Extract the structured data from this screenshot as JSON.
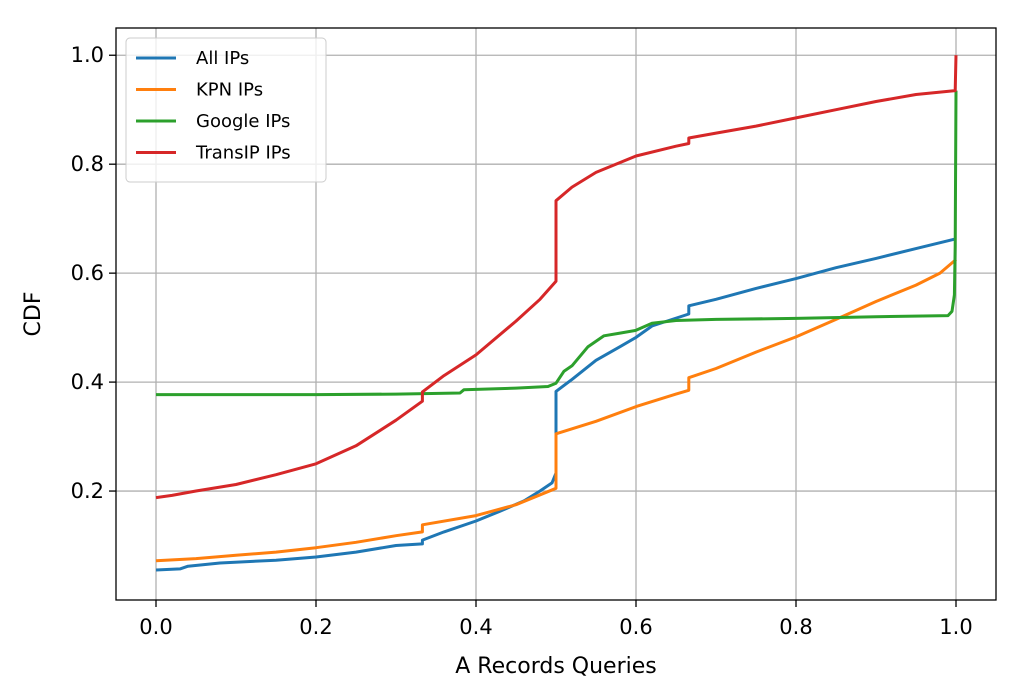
{
  "chart_data": {
    "type": "line",
    "xlabel": "A Records Queries",
    "ylabel": "CDF",
    "xlim": [
      -0.05,
      1.05
    ],
    "ylim": [
      0.0,
      1.05
    ],
    "xticks": [
      0.0,
      0.2,
      0.4,
      0.6,
      0.8,
      1.0
    ],
    "yticks": [
      0.2,
      0.4,
      0.6,
      0.8,
      1.0
    ],
    "xtick_labels": [
      "0.0",
      "0.2",
      "0.4",
      "0.6",
      "0.8",
      "1.0"
    ],
    "ytick_labels": [
      "0.2",
      "0.4",
      "0.6",
      "0.8",
      "1.0"
    ],
    "grid": true,
    "legend_position": "top-left",
    "series": [
      {
        "name": "All IPs",
        "color": "#1f77b4",
        "x": [
          0.0,
          0.03,
          0.04,
          0.08,
          0.15,
          0.2,
          0.25,
          0.3,
          0.333,
          0.333,
          0.36,
          0.4,
          0.43,
          0.46,
          0.48,
          0.495,
          0.5,
          0.5,
          0.52,
          0.55,
          0.58,
          0.6,
          0.62,
          0.666,
          0.666,
          0.7,
          0.75,
          0.8,
          0.85,
          0.9,
          0.95,
          1.0
        ],
        "y": [
          0.055,
          0.057,
          0.062,
          0.068,
          0.073,
          0.079,
          0.088,
          0.1,
          0.103,
          0.11,
          0.125,
          0.145,
          0.163,
          0.182,
          0.2,
          0.215,
          0.233,
          0.383,
          0.405,
          0.44,
          0.465,
          0.482,
          0.503,
          0.525,
          0.54,
          0.552,
          0.572,
          0.59,
          0.61,
          0.627,
          0.645,
          0.663
        ]
      },
      {
        "name": "KPN IPs",
        "color": "#ff7f0e",
        "x": [
          0.0,
          0.05,
          0.1,
          0.15,
          0.2,
          0.25,
          0.3,
          0.333,
          0.333,
          0.4,
          0.45,
          0.5,
          0.5,
          0.55,
          0.6,
          0.65,
          0.666,
          0.666,
          0.7,
          0.75,
          0.8,
          0.85,
          0.9,
          0.95,
          0.98,
          1.0
        ],
        "y": [
          0.072,
          0.076,
          0.082,
          0.088,
          0.096,
          0.106,
          0.118,
          0.125,
          0.138,
          0.155,
          0.175,
          0.205,
          0.305,
          0.328,
          0.355,
          0.378,
          0.385,
          0.408,
          0.425,
          0.455,
          0.483,
          0.515,
          0.548,
          0.578,
          0.6,
          0.625
        ]
      },
      {
        "name": "Google IPs",
        "color": "#2ca02c",
        "x": [
          0.0,
          0.2,
          0.3,
          0.38,
          0.385,
          0.45,
          0.49,
          0.5,
          0.51,
          0.52,
          0.54,
          0.56,
          0.58,
          0.6,
          0.62,
          0.65,
          0.7,
          0.8,
          0.9,
          0.99,
          0.995,
          0.998,
          0.999,
          1.0
        ],
        "y": [
          0.377,
          0.377,
          0.378,
          0.38,
          0.386,
          0.389,
          0.392,
          0.398,
          0.42,
          0.43,
          0.465,
          0.485,
          0.49,
          0.495,
          0.508,
          0.513,
          0.515,
          0.517,
          0.52,
          0.522,
          0.53,
          0.56,
          0.65,
          0.935
        ]
      },
      {
        "name": "TransIP IPs",
        "color": "#d62728",
        "x": [
          0.0,
          0.02,
          0.05,
          0.1,
          0.15,
          0.2,
          0.25,
          0.3,
          0.333,
          0.333,
          0.36,
          0.4,
          0.45,
          0.48,
          0.5,
          0.5,
          0.52,
          0.55,
          0.6,
          0.65,
          0.666,
          0.666,
          0.7,
          0.75,
          0.8,
          0.85,
          0.9,
          0.95,
          0.999,
          1.0
        ],
        "y": [
          0.188,
          0.192,
          0.2,
          0.212,
          0.23,
          0.25,
          0.283,
          0.33,
          0.365,
          0.382,
          0.412,
          0.45,
          0.512,
          0.552,
          0.585,
          0.733,
          0.758,
          0.785,
          0.815,
          0.833,
          0.838,
          0.848,
          0.857,
          0.87,
          0.885,
          0.9,
          0.915,
          0.928,
          0.935,
          1.0
        ]
      }
    ]
  }
}
